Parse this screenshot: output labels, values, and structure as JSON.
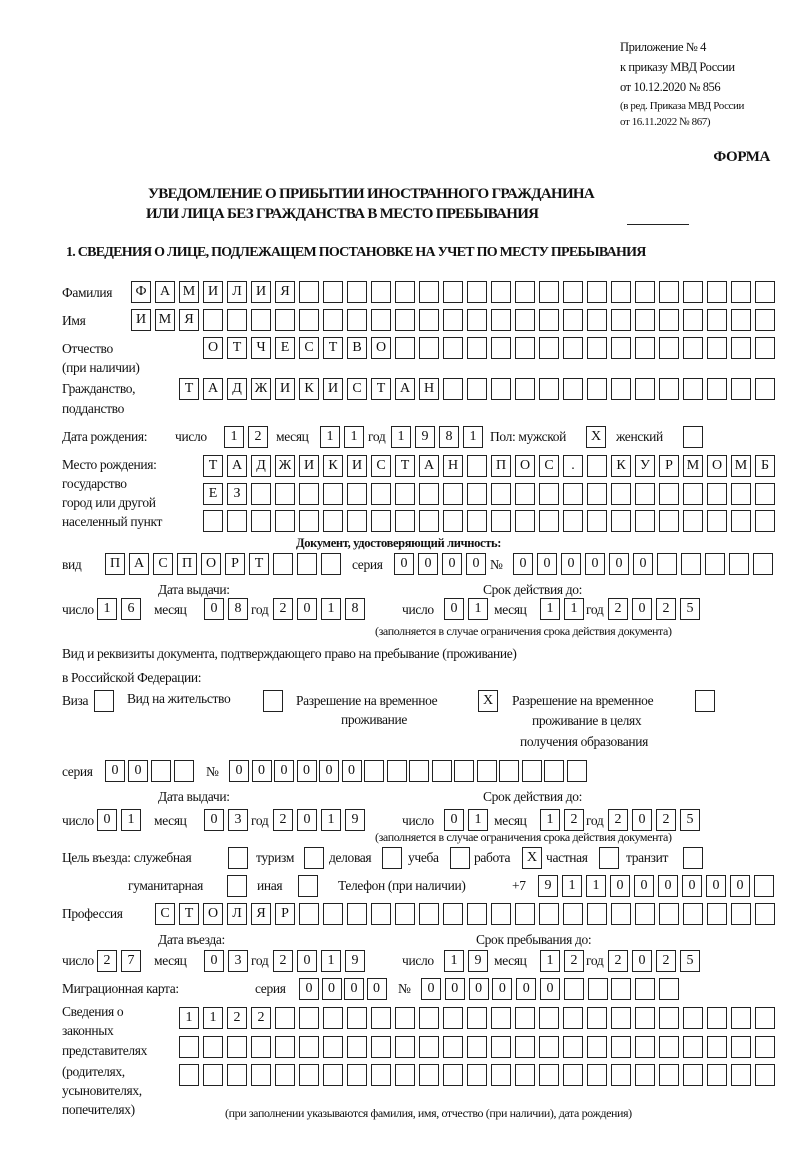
{
  "header": {
    "appendix": "Приложение № 4",
    "order": "к приказу МВД России",
    "order_date": "от 10.12.2020 № 856",
    "revision_1": "(в ред. Приказа МВД России",
    "revision_2": "от 16.11.2022 № 867)",
    "form_label": "ФОРМА",
    "title_1": "УВЕДОМЛЕНИЕ О ПРИБЫТИИ ИНОСТРАННОГО ГРАЖДАНИНА",
    "title_2": "ИЛИ ЛИЦА БЕЗ ГРАЖДАНСТВА В МЕСТО ПРЕБЫВАНИЯ",
    "section_1": "1. СВЕДЕНИЯ О ЛИЦЕ, ПОДЛЕЖАЩЕМ ПОСТАНОВКЕ НА УЧЕТ ПО МЕСТУ ПРЕБЫВАНИЯ"
  },
  "labels": {
    "surname": "Фамилия",
    "name": "Имя",
    "patronymic_1": "Отчество",
    "patronymic_2": "(при наличии)",
    "citizenship_1": "Гражданство,",
    "citizenship_2": "подданство",
    "birth_date": "Дата рождения:",
    "day": "число",
    "month": "месяц",
    "year": "год",
    "sex": "Пол: мужской",
    "female": "женский",
    "birthplace_1": "Место рождения:",
    "birthplace_2": "государство",
    "birthplace_3": "город или другой",
    "birthplace_4": "населенный пункт",
    "id_document": "Документ, удостоверяющий личность:",
    "kind": "вид",
    "series": "серия",
    "number": "№",
    "issue_date": "Дата выдачи:",
    "valid_until": "Срок действия до:",
    "validity_note": "(заполняется в случае ограничения срока действия документа)",
    "stay_doc_1": "Вид и реквизиты документа, подтверждающего право на пребывание (проживание)",
    "stay_doc_2": "в Российской Федерации:",
    "visa": "Виза",
    "residence_permit": "Вид на жительство",
    "temp_permit_1": "Разрешение на временное",
    "temp_permit_2": "проживание",
    "temp_edu_1": "Разрешение на временное",
    "temp_edu_2": "проживание в целях",
    "temp_edu_3": "получения образования",
    "purpose": "Цель въезда: служебная",
    "tourism": "туризм",
    "business": "деловая",
    "study": "учеба",
    "work": "работа",
    "private": "частная",
    "transit": "транзит",
    "humanitarian": "гуманитарная",
    "other": "иная",
    "phone": "Телефон (при наличии)",
    "phone_prefix": "+7",
    "profession": "Профессия",
    "entry_date": "Дата въезда:",
    "stay_until": "Срок пребывания до:",
    "migration_card": "Миграционная карта:",
    "representatives_1": "Сведения о",
    "representatives_2": "законных",
    "representatives_3": "представителях",
    "representatives_4": "(родителях,",
    "representatives_5": "усыновителях,",
    "representatives_6": "попечителях)",
    "representatives_note": "(при заполнении указываются фамилия, имя, отчество (при наличии), дата рождения)"
  },
  "fields": {
    "surname": "ФАМИЛИЯ",
    "name": "ИМЯ",
    "patronymic": "ОТЧЕСТВО",
    "citizenship": "ТАДЖИКИСТАН",
    "birth_day": "12",
    "birth_month": "11",
    "birth_year": "1981",
    "sex_male": "X",
    "sex_female": "",
    "birthplace_1": "ТАДЖИКИСТАН ПОС. КУРМОМБ",
    "birthplace_2": "ЕЗ",
    "birthplace_3": "",
    "id_kind": "ПАСПОРТ",
    "id_series": "0000",
    "id_number": "000000",
    "id_issue_day": "16",
    "id_issue_month": "08",
    "id_issue_year": "2018",
    "id_valid_day": "01",
    "id_valid_month": "11",
    "id_valid_year": "2025",
    "visa": "",
    "residence_permit": "",
    "temp_permit": "X",
    "temp_edu_permit": "",
    "stay_doc_series": "00",
    "stay_doc_number": "000000",
    "stay_issue_day": "01",
    "stay_issue_month": "03",
    "stay_issue_year": "2019",
    "stay_valid_day": "01",
    "stay_valid_month": "12",
    "stay_valid_year": "2025",
    "purpose_official": "",
    "purpose_tourism": "",
    "purpose_business": "",
    "purpose_study": "",
    "purpose_work": "X",
    "purpose_private": "",
    "purpose_transit": "",
    "purpose_humanitarian": "",
    "purpose_other": "",
    "phone": "911000000",
    "profession": "СТОЛЯР",
    "entry_day": "27",
    "entry_month": "03",
    "entry_year": "2019",
    "stay_until_day": "19",
    "stay_until_month": "12",
    "stay_until_year": "2025",
    "migration_series": "0000",
    "migration_number": "000000",
    "representatives_1": "1122",
    "representatives_2": "",
    "representatives_3": ""
  }
}
